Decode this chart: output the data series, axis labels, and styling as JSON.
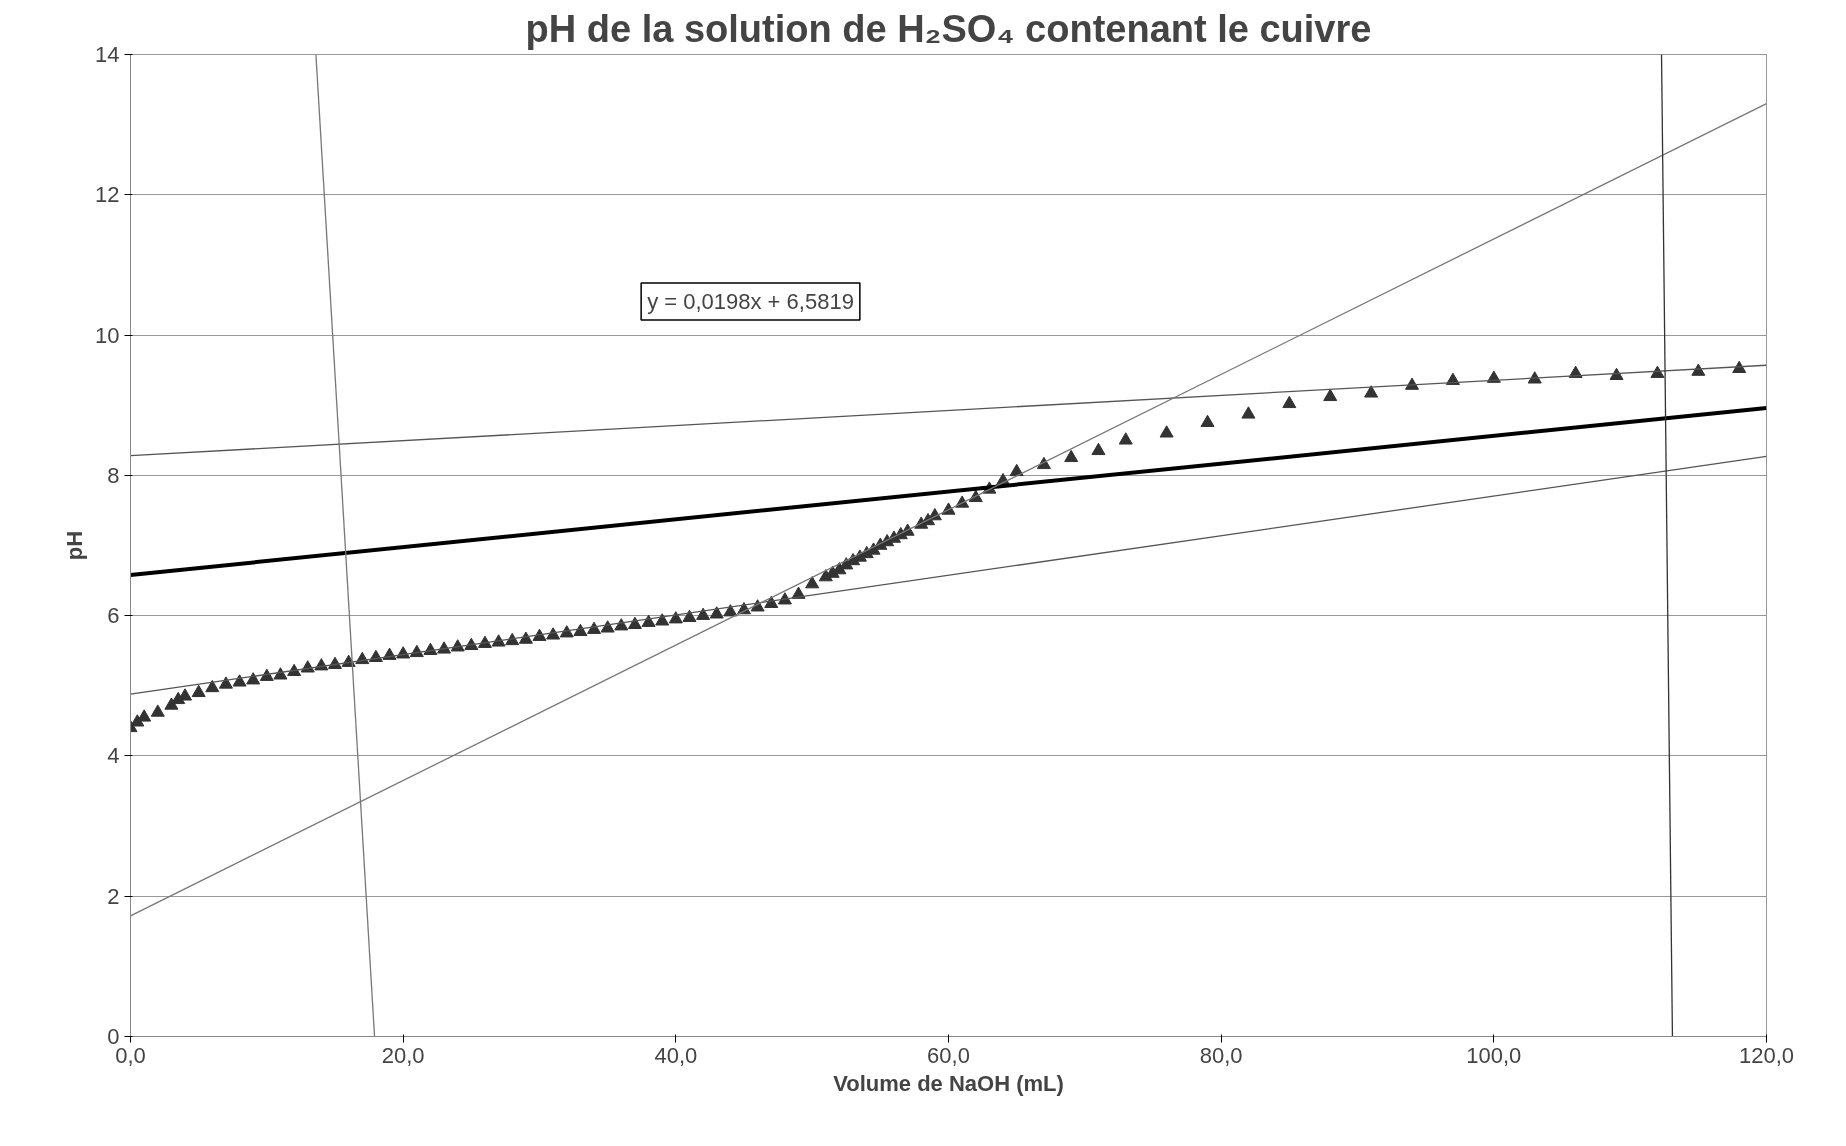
{
  "chart_data": {
    "type": "scatter",
    "title": "pH de la solution de H₂SO₄ contenant le cuivre",
    "xlabel": "Volume de NaOH (mL)",
    "ylabel": "pH",
    "xlim": [
      0,
      120
    ],
    "ylim": [
      0,
      14
    ],
    "xticks": [
      {
        "value": 0,
        "label": "0,0"
      },
      {
        "value": 20,
        "label": "20,0"
      },
      {
        "value": 40,
        "label": "40,0"
      },
      {
        "value": 60,
        "label": "60,0"
      },
      {
        "value": 80,
        "label": "80,0"
      },
      {
        "value": 100,
        "label": "100,0"
      },
      {
        "value": 120,
        "label": "120,0"
      }
    ],
    "yticks": [
      0,
      2,
      4,
      6,
      8,
      10,
      12,
      14
    ],
    "grid": "y",
    "annotations": [
      "y = 0,0198x + 6,5819"
    ],
    "series": [
      {
        "marker": "triangle",
        "color": "#333333",
        "x": [
          0,
          0.5,
          1,
          2,
          3,
          3.5,
          4,
          5,
          6,
          7,
          8,
          9,
          10,
          11,
          12,
          13,
          14,
          15,
          16,
          17,
          18,
          19,
          20,
          21,
          22,
          23,
          24,
          25,
          26,
          27,
          28,
          29,
          30,
          31,
          32,
          33,
          34,
          35,
          36,
          37,
          38,
          39,
          40,
          41,
          42,
          43,
          44,
          45,
          46,
          47,
          48,
          49,
          50,
          51,
          51.5,
          52,
          52.5,
          53,
          53.5,
          54,
          54.5,
          55,
          55.5,
          56,
          56.5,
          57,
          58,
          58.5,
          59,
          60,
          61,
          62,
          63,
          64,
          65,
          67,
          69,
          71,
          73,
          76,
          79,
          82,
          85,
          88,
          91,
          94,
          97,
          100,
          103,
          106,
          109,
          112,
          115,
          118
        ],
        "values": [
          4.4,
          4.48,
          4.55,
          4.62,
          4.72,
          4.8,
          4.85,
          4.9,
          4.97,
          5.02,
          5.05,
          5.08,
          5.13,
          5.15,
          5.2,
          5.25,
          5.28,
          5.3,
          5.33,
          5.37,
          5.4,
          5.43,
          5.45,
          5.47,
          5.5,
          5.52,
          5.55,
          5.57,
          5.6,
          5.62,
          5.64,
          5.66,
          5.7,
          5.72,
          5.75,
          5.77,
          5.8,
          5.82,
          5.85,
          5.87,
          5.9,
          5.92,
          5.95,
          5.97,
          6.0,
          6.02,
          6.05,
          6.08,
          6.12,
          6.17,
          6.22,
          6.3,
          6.45,
          6.55,
          6.6,
          6.65,
          6.72,
          6.78,
          6.83,
          6.88,
          6.93,
          7.0,
          7.05,
          7.1,
          7.15,
          7.2,
          7.3,
          7.35,
          7.42,
          7.5,
          7.6,
          7.68,
          7.8,
          7.92,
          8.05,
          8.15,
          8.25,
          8.35,
          8.5,
          8.6,
          8.75,
          8.87,
          9.02,
          9.12,
          9.17,
          9.28,
          9.35,
          9.38,
          9.37,
          9.45,
          9.42,
          9.45,
          9.48,
          9.52
        ]
      },
      {
        "type": "line",
        "color": "#000000",
        "x": [
          0,
          120
        ],
        "values": [
          6.58,
          8.96
        ]
      },
      {
        "type": "line",
        "color": "#555555",
        "x": [
          0,
          120
        ],
        "values": [
          8.28,
          9.57
        ]
      },
      {
        "type": "line",
        "color": "#555555",
        "x": [
          0,
          120
        ],
        "values": [
          4.88,
          8.27
        ]
      },
      {
        "type": "line",
        "color": "#777777",
        "x": [
          0,
          120
        ],
        "values": [
          1.72,
          13.3
        ]
      },
      {
        "type": "line",
        "color": "#777777",
        "x": [
          13.6,
          17.9
        ],
        "values": [
          14,
          0
        ]
      },
      {
        "type": "line",
        "color": "#333333",
        "x": [
          112.3,
          113.1
        ],
        "values": [
          14,
          0
        ]
      }
    ]
  }
}
